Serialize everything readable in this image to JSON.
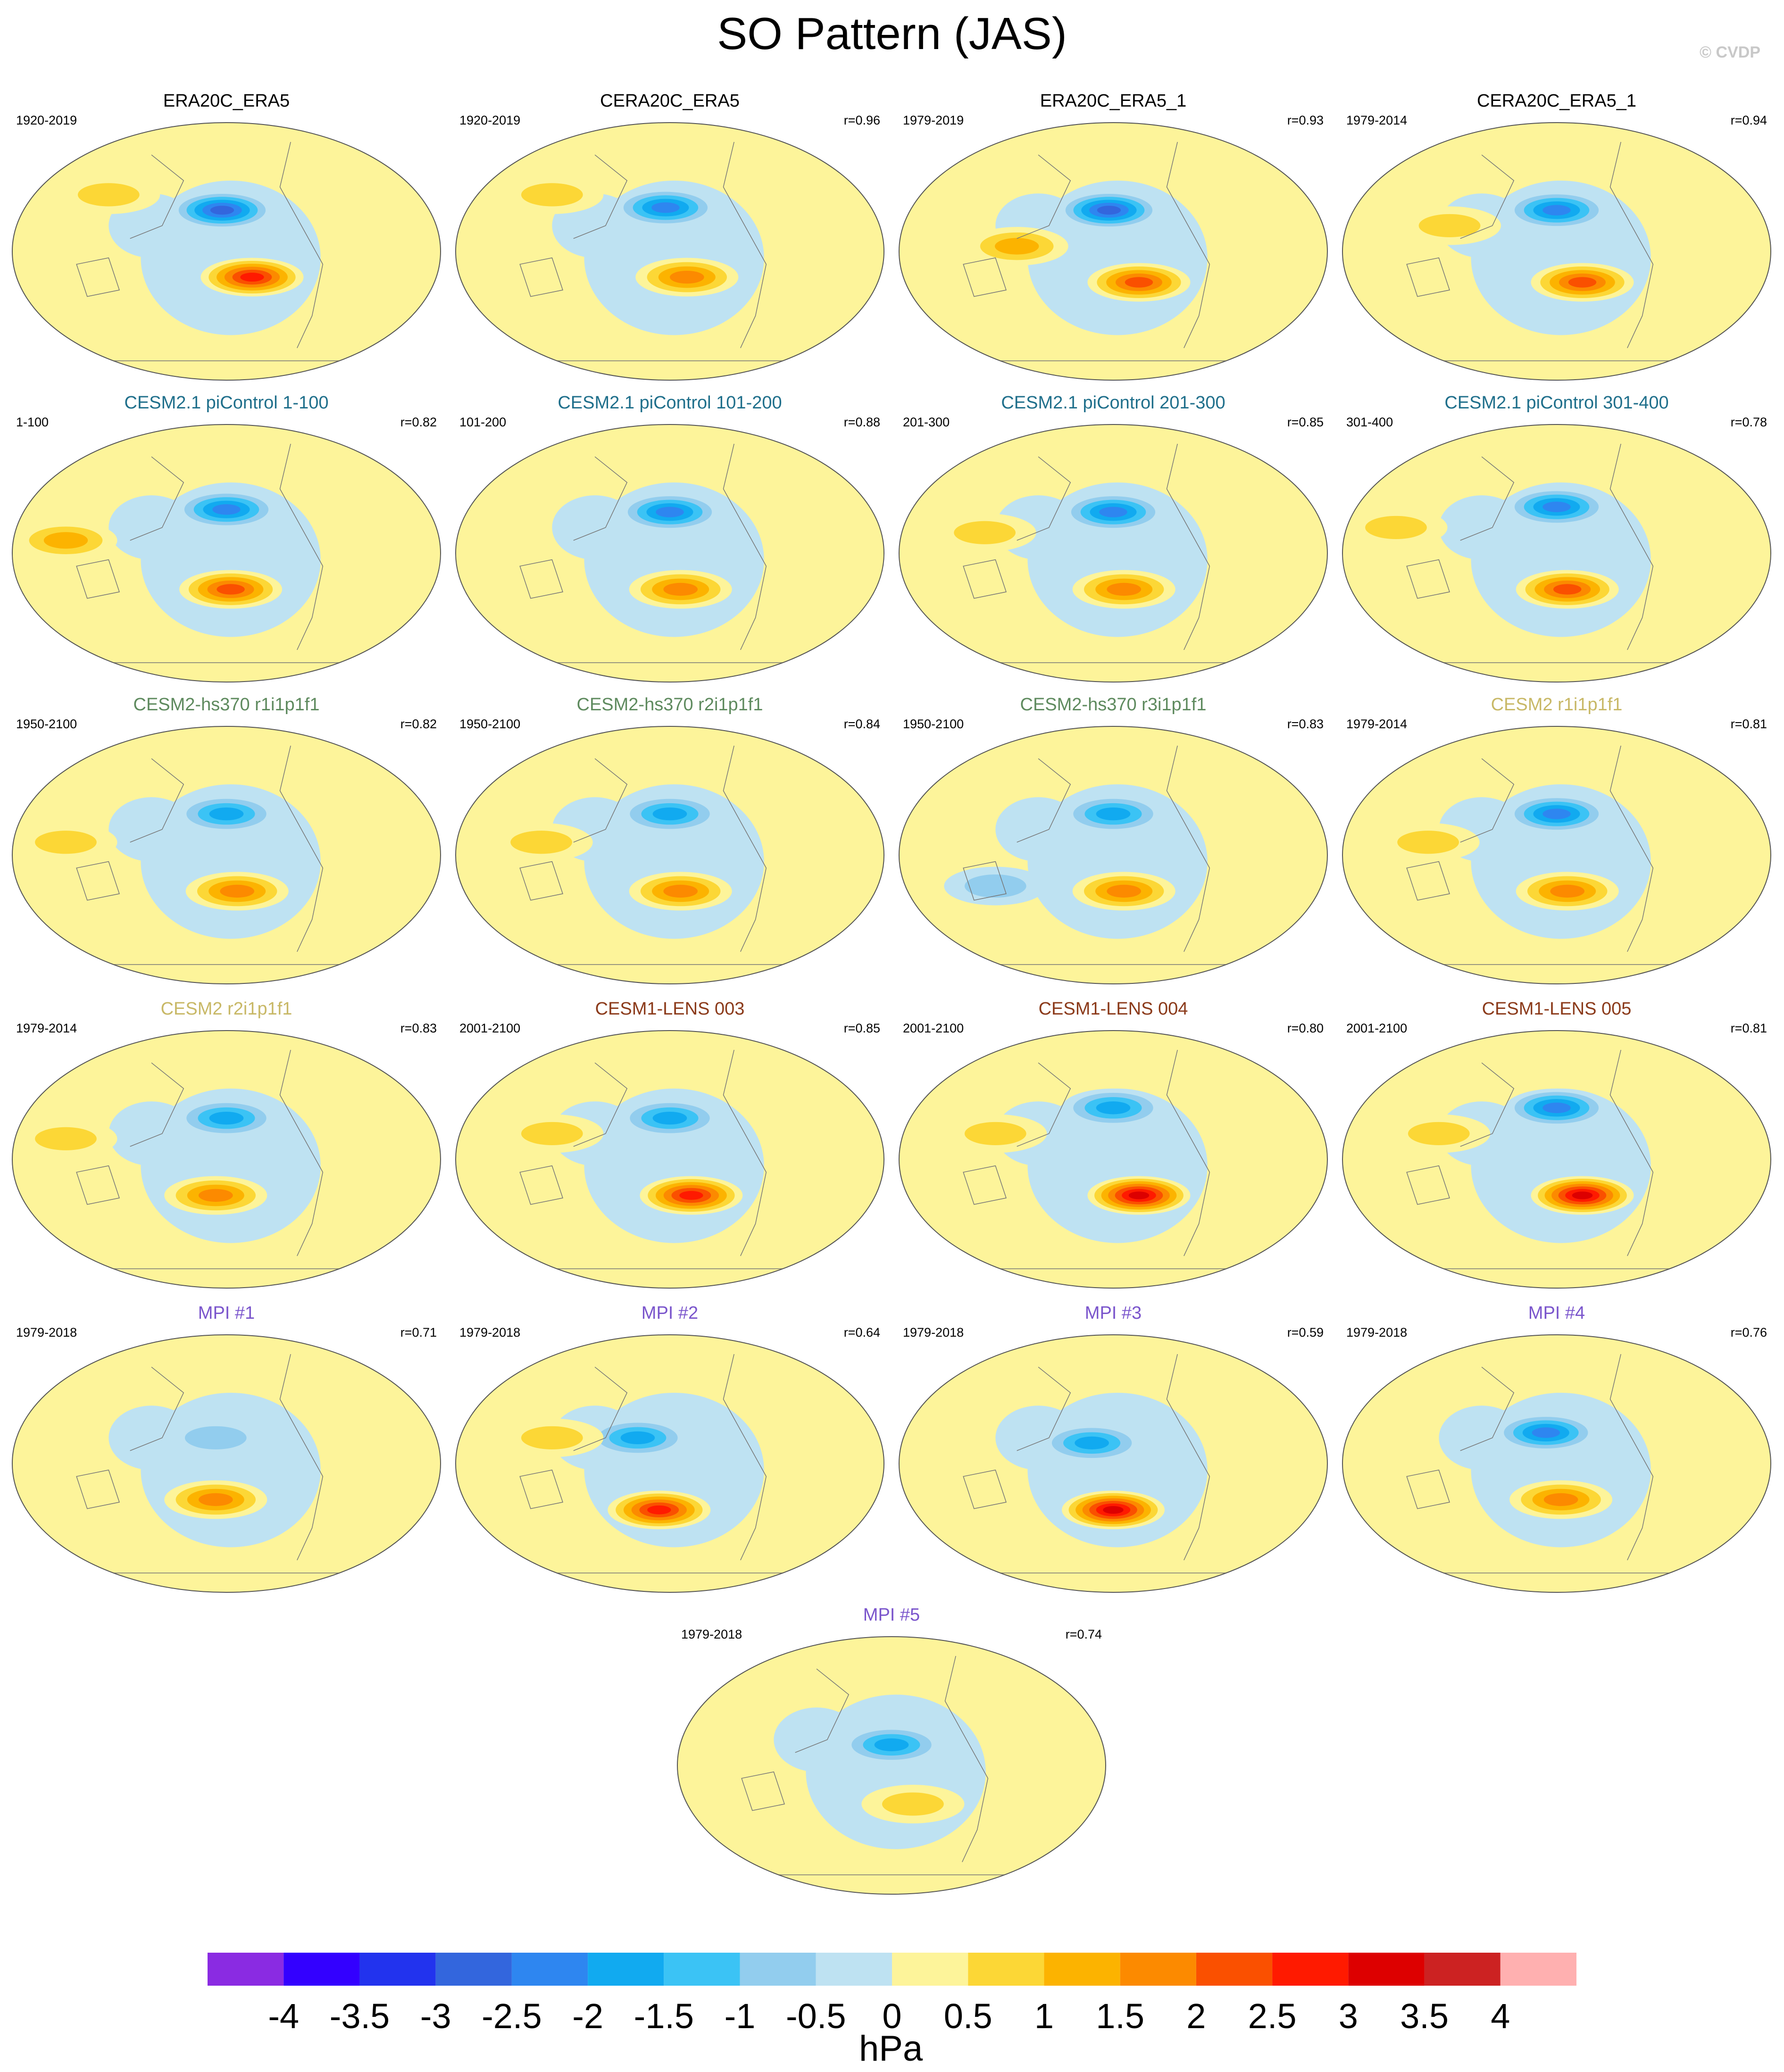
{
  "title": "SO Pattern (JAS)",
  "copyright": "© CVDP",
  "colors": {
    "obs": "#000000",
    "cesm_pi": "#1f6f8b",
    "hs370": "#5e8a5e",
    "cesm2": "#c8b866",
    "lens": "#8b3a1a",
    "mpi": "#7a55cc"
  },
  "chart_data": {
    "type": "map-panels",
    "variable": "SO Pattern (JAS)",
    "units": "hPa",
    "levels": [
      -4,
      -3.5,
      -3,
      -2.5,
      -2,
      -1.5,
      -1,
      -0.5,
      0,
      0.5,
      1,
      1.5,
      2,
      2.5,
      3,
      3.5,
      4
    ],
    "level_labels": [
      "-4",
      "-3.5",
      "-3",
      "-2.5",
      "-2",
      "-1.5",
      "-1",
      "-0.5",
      "0",
      "0.5",
      "1",
      "1.5",
      "2",
      "2.5",
      "3",
      "3.5",
      "4"
    ],
    "colorbar_colors": [
      "#8a2be2",
      "#3300ff",
      "#2233ee",
      "#3366dd",
      "#2e86f0",
      "#11aaf0",
      "#3bc3f5",
      "#92cdee",
      "#bee2f2",
      "#fdf49a",
      "#fcd736",
      "#fcb300",
      "#fc8a00",
      "#fa5000",
      "#ff1a00",
      "#dd0000",
      "#cc2222",
      "#ffb0b0"
    ],
    "panels": [
      {
        "name": "ERA20C_ERA5",
        "period": "1920-2019",
        "r": "",
        "group": "obs",
        "features": [
          {
            "x": -0.02,
            "y": 0.34,
            "a": -3
          },
          {
            "x": 0.12,
            "y": 0.6,
            "a": 3
          },
          {
            "x": -0.55,
            "y": 0.28,
            "a": 1.2
          }
        ]
      },
      {
        "name": "CERA20C_ERA5",
        "period": "1920-2019",
        "r": "r=0.96",
        "group": "obs",
        "features": [
          {
            "x": -0.02,
            "y": 0.33,
            "a": -2.5
          },
          {
            "x": 0.08,
            "y": 0.6,
            "a": 2
          },
          {
            "x": -0.55,
            "y": 0.28,
            "a": 1
          }
        ]
      },
      {
        "name": "ERA20C_ERA5_1",
        "period": "1979-2019",
        "r": "r=0.93",
        "group": "obs",
        "features": [
          {
            "x": -0.02,
            "y": 0.34,
            "a": -3
          },
          {
            "x": 0.12,
            "y": 0.62,
            "a": 2.5
          },
          {
            "x": -0.45,
            "y": 0.48,
            "a": 1.5
          }
        ]
      },
      {
        "name": "CERA20C_ERA5_1",
        "period": "1979-2014",
        "r": "r=0.94",
        "group": "obs",
        "features": [
          {
            "x": 0.0,
            "y": 0.34,
            "a": -2.5
          },
          {
            "x": 0.12,
            "y": 0.62,
            "a": 2.5
          },
          {
            "x": -0.5,
            "y": 0.4,
            "a": 1.2
          }
        ]
      },
      {
        "name": "CESM2.1 piControl 1-100",
        "period": "1-100",
        "r": "r=0.82",
        "group": "cesm_pi",
        "features": [
          {
            "x": 0.0,
            "y": 0.33,
            "a": -2.5
          },
          {
            "x": 0.02,
            "y": 0.64,
            "a": 2.5
          },
          {
            "x": -0.75,
            "y": 0.45,
            "a": 1.5
          }
        ]
      },
      {
        "name": "CESM2.1 piControl 101-200",
        "period": "101-200",
        "r": "r=0.88",
        "group": "cesm_pi",
        "features": [
          {
            "x": 0.0,
            "y": 0.34,
            "a": -2.5
          },
          {
            "x": 0.05,
            "y": 0.64,
            "a": 2
          }
        ]
      },
      {
        "name": "CESM2.1 piControl 201-300",
        "period": "201-300",
        "r": "r=0.85",
        "group": "cesm_pi",
        "features": [
          {
            "x": 0.0,
            "y": 0.34,
            "a": -2.5
          },
          {
            "x": 0.05,
            "y": 0.64,
            "a": 2
          },
          {
            "x": -0.6,
            "y": 0.42,
            "a": 1.2
          }
        ]
      },
      {
        "name": "CESM2.1 piControl 301-400",
        "period": "301-400",
        "r": "r=0.78",
        "group": "cesm_pi",
        "features": [
          {
            "x": 0.0,
            "y": 0.32,
            "a": -2.5
          },
          {
            "x": 0.05,
            "y": 0.64,
            "a": 2.5
          },
          {
            "x": -0.75,
            "y": 0.4,
            "a": 1.2
          }
        ]
      },
      {
        "name": "CESM2-hs370 r1i1p1f1",
        "period": "1950-2100",
        "r": "r=0.82",
        "group": "hs370",
        "features": [
          {
            "x": 0.0,
            "y": 0.34,
            "a": -2
          },
          {
            "x": 0.05,
            "y": 0.64,
            "a": 2
          },
          {
            "x": -0.75,
            "y": 0.45,
            "a": 1
          }
        ]
      },
      {
        "name": "CESM2-hs370 r2i1p1f1",
        "period": "1950-2100",
        "r": "r=0.84",
        "group": "hs370",
        "features": [
          {
            "x": 0.0,
            "y": 0.34,
            "a": -2
          },
          {
            "x": 0.05,
            "y": 0.64,
            "a": 2
          },
          {
            "x": -0.6,
            "y": 0.45,
            "a": 1.2
          }
        ]
      },
      {
        "name": "CESM2-hs370 r3i1p1f1",
        "period": "1950-2100",
        "r": "r=0.83",
        "group": "hs370",
        "features": [
          {
            "x": 0.0,
            "y": 0.34,
            "a": -2
          },
          {
            "x": 0.05,
            "y": 0.64,
            "a": 2
          },
          {
            "x": -0.55,
            "y": 0.62,
            "a": -1.2
          }
        ]
      },
      {
        "name": "CESM2 r1i1p1f1",
        "period": "1979-2014",
        "r": "r=0.81",
        "group": "cesm2",
        "features": [
          {
            "x": 0.0,
            "y": 0.34,
            "a": -2.5
          },
          {
            "x": 0.05,
            "y": 0.64,
            "a": 2
          },
          {
            "x": -0.6,
            "y": 0.45,
            "a": 1
          }
        ]
      },
      {
        "name": "CESM2 r2i1p1f1",
        "period": "1979-2014",
        "r": "r=0.83",
        "group": "cesm2",
        "features": [
          {
            "x": 0.0,
            "y": 0.34,
            "a": -2
          },
          {
            "x": -0.05,
            "y": 0.64,
            "a": 2
          },
          {
            "x": -0.75,
            "y": 0.42,
            "a": 1.2
          }
        ]
      },
      {
        "name": "CESM1-LENS 003",
        "period": "2001-2100",
        "r": "r=0.85",
        "group": "lens",
        "features": [
          {
            "x": 0.0,
            "y": 0.34,
            "a": -2
          },
          {
            "x": 0.1,
            "y": 0.64,
            "a": 3
          },
          {
            "x": -0.55,
            "y": 0.4,
            "a": 1.2
          }
        ]
      },
      {
        "name": "CESM1-LENS 004",
        "period": "2001-2100",
        "r": "r=0.80",
        "group": "lens",
        "features": [
          {
            "x": 0.0,
            "y": 0.3,
            "a": -2
          },
          {
            "x": 0.12,
            "y": 0.64,
            "a": 3.5
          },
          {
            "x": -0.55,
            "y": 0.4,
            "a": 1
          }
        ]
      },
      {
        "name": "CESM1-LENS 005",
        "period": "2001-2100",
        "r": "r=0.81",
        "group": "lens",
        "features": [
          {
            "x": 0.0,
            "y": 0.3,
            "a": -2.5
          },
          {
            "x": 0.12,
            "y": 0.64,
            "a": 3.5
          },
          {
            "x": -0.55,
            "y": 0.4,
            "a": 1
          }
        ]
      },
      {
        "name": "MPI #1",
        "period": "1979-2018",
        "r": "r=0.71",
        "group": "mpi",
        "features": [
          {
            "x": -0.05,
            "y": 0.4,
            "a": -1.2
          },
          {
            "x": -0.05,
            "y": 0.64,
            "a": 2
          }
        ]
      },
      {
        "name": "MPI #2",
        "period": "1979-2018",
        "r": "r=0.64",
        "group": "mpi",
        "features": [
          {
            "x": -0.15,
            "y": 0.4,
            "a": -2
          },
          {
            "x": -0.05,
            "y": 0.68,
            "a": 3
          },
          {
            "x": -0.55,
            "y": 0.4,
            "a": 1.2
          }
        ]
      },
      {
        "name": "MPI #3",
        "period": "1979-2018",
        "r": "r=0.59",
        "group": "mpi",
        "features": [
          {
            "x": -0.1,
            "y": 0.42,
            "a": -2
          },
          {
            "x": 0.0,
            "y": 0.68,
            "a": 3.5
          }
        ]
      },
      {
        "name": "MPI #4",
        "period": "1979-2018",
        "r": "r=0.76",
        "group": "mpi",
        "features": [
          {
            "x": -0.05,
            "y": 0.38,
            "a": -2.5
          },
          {
            "x": 0.02,
            "y": 0.64,
            "a": 2
          }
        ]
      },
      {
        "name": "MPI #5",
        "period": "1979-2018",
        "r": "r=0.74",
        "group": "mpi",
        "features": [
          {
            "x": 0.0,
            "y": 0.42,
            "a": -2
          },
          {
            "x": 0.1,
            "y": 0.65,
            "a": 1.2
          }
        ]
      }
    ]
  }
}
